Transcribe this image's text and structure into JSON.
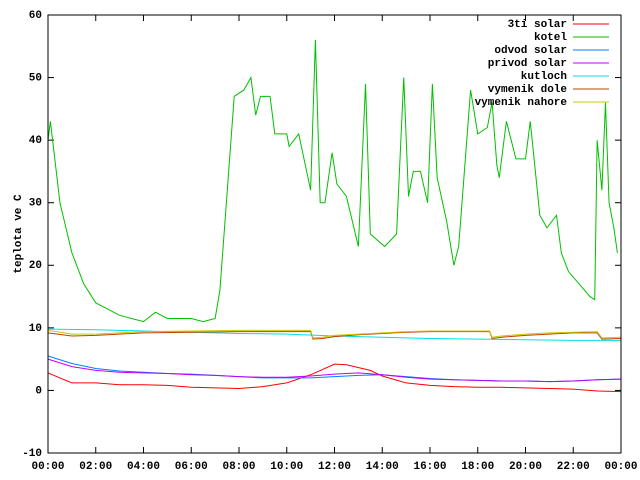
{
  "chart_data": {
    "type": "line",
    "ylabel": "teplota ve C",
    "xlim": [
      0,
      24
    ],
    "xticks": [
      {
        "value": 0,
        "label": "00:00"
      },
      {
        "value": 2,
        "label": "02:00"
      },
      {
        "value": 4,
        "label": "04:00"
      },
      {
        "value": 6,
        "label": "06:00"
      },
      {
        "value": 8,
        "label": "08:00"
      },
      {
        "value": 10,
        "label": "10:00"
      },
      {
        "value": 12,
        "label": "12:00"
      },
      {
        "value": 14,
        "label": "14:00"
      },
      {
        "value": 16,
        "label": "16:00"
      },
      {
        "value": 18,
        "label": "18:00"
      },
      {
        "value": 20,
        "label": "20:00"
      },
      {
        "value": 22,
        "label": "22:00"
      },
      {
        "value": 24,
        "label": "00:00"
      }
    ],
    "ylim": [
      -10,
      60
    ],
    "yticks": [
      -10,
      0,
      10,
      20,
      30,
      40,
      50,
      60
    ],
    "legend": "top-right",
    "series": [
      {
        "name": "3ti solar",
        "color": "#ff0000",
        "x": [
          0,
          1,
          2,
          3,
          4,
          5,
          6,
          7,
          8,
          9,
          10,
          11,
          12,
          12.5,
          13.5,
          14,
          15,
          16,
          17,
          18,
          19,
          20,
          21,
          22,
          23,
          24
        ],
        "values": [
          2.8,
          1.2,
          1.2,
          0.9,
          0.9,
          0.8,
          0.5,
          0.4,
          0.3,
          0.6,
          1.2,
          2.5,
          4.2,
          4.1,
          3.2,
          2.3,
          1.2,
          0.8,
          0.6,
          0.5,
          0.5,
          0.4,
          0.3,
          0.2,
          -0.1,
          -0.2
        ]
      },
      {
        "name": "kotel",
        "color": "#00c000",
        "x": [
          0,
          0.1,
          0.5,
          1,
          1.5,
          2,
          2.5,
          3,
          3.5,
          4,
          4.5,
          5,
          5.5,
          6,
          6.5,
          7,
          7.2,
          7.8,
          8.2,
          8.5,
          8.7,
          8.9,
          9.3,
          9.5,
          10,
          10.1,
          10.5,
          11,
          11.2,
          11.4,
          11.6,
          11.9,
          12.1,
          12.5,
          13,
          13.3,
          13.5,
          14.1,
          14.6,
          14.9,
          15.1,
          15.3,
          15.6,
          15.9,
          16.1,
          16.3,
          16.7,
          17,
          17.2,
          17.7,
          18,
          18.4,
          18.6,
          18.8,
          18.9,
          19.2,
          19.6,
          20,
          20.2,
          20.6,
          20.9,
          21.3,
          21.5,
          21.8,
          22.7,
          22.9,
          23,
          23.2,
          23.35,
          23.5,
          23.7,
          23.85
        ],
        "values": [
          40,
          43,
          30,
          22,
          17,
          14,
          13,
          12,
          11.5,
          11,
          12.5,
          11.5,
          11.5,
          11.5,
          11,
          11.5,
          16,
          47,
          48,
          50,
          44,
          47,
          47,
          41,
          41,
          39,
          41,
          32,
          56,
          30,
          30,
          38,
          33,
          31,
          23,
          49,
          25,
          23,
          25,
          50,
          31,
          35,
          35,
          30,
          49,
          34,
          27,
          20,
          23,
          48,
          41,
          42,
          46,
          36,
          34,
          43,
          37,
          37,
          43,
          28,
          26,
          28,
          22,
          19,
          15,
          14.5,
          40,
          32,
          46,
          30,
          26,
          22
        ]
      },
      {
        "name": "odvod solar",
        "color": "#0080ff",
        "x": [
          0,
          1,
          2,
          3,
          4,
          5,
          6,
          7,
          8,
          9,
          10,
          11,
          12,
          13,
          14,
          15,
          16,
          17,
          18,
          19,
          20,
          21,
          22,
          23,
          24
        ],
        "values": [
          5.5,
          4.3,
          3.5,
          3.1,
          2.9,
          2.7,
          2.6,
          2.4,
          2.2,
          2.0,
          2.0,
          2.0,
          2.2,
          2.4,
          2.5,
          2.2,
          1.9,
          1.7,
          1.6,
          1.5,
          1.5,
          1.4,
          1.5,
          1.7,
          1.8
        ]
      },
      {
        "name": "privod solar",
        "color": "#c000ff",
        "x": [
          0,
          1,
          2,
          3,
          4,
          5,
          6,
          7,
          8,
          9,
          10,
          11,
          12,
          13,
          14,
          15,
          16,
          17,
          18,
          19,
          20,
          21,
          22,
          23,
          24
        ],
        "values": [
          5.0,
          3.8,
          3.2,
          2.9,
          2.8,
          2.7,
          2.5,
          2.4,
          2.2,
          2.1,
          2.1,
          2.3,
          2.6,
          2.8,
          2.5,
          2.1,
          1.8,
          1.7,
          1.6,
          1.5,
          1.5,
          1.4,
          1.5,
          1.7,
          1.8
        ]
      },
      {
        "name": "kutloch",
        "color": "#00e0e0",
        "x": [
          0,
          2,
          4,
          6,
          8,
          10,
          12,
          14,
          16,
          18,
          20,
          22,
          24
        ],
        "values": [
          9.8,
          9.7,
          9.5,
          9.3,
          9.1,
          9.0,
          8.7,
          8.5,
          8.3,
          8.2,
          8.1,
          8.0,
          8.0
        ]
      },
      {
        "name": "vymenik dole",
        "color": "#c04000",
        "x": [
          0,
          1,
          2,
          3,
          4,
          6,
          8,
          10,
          11,
          11.1,
          11.5,
          12,
          13,
          14,
          15,
          16,
          18,
          18.5,
          18.6,
          19,
          20,
          21,
          22,
          23,
          23.2,
          24
        ],
        "values": [
          9.2,
          8.7,
          8.8,
          9.0,
          9.2,
          9.3,
          9.4,
          9.4,
          9.4,
          8.2,
          8.3,
          8.6,
          8.9,
          9.1,
          9.3,
          9.4,
          9.4,
          9.4,
          8.3,
          8.5,
          8.8,
          9.0,
          9.2,
          9.2,
          8.2,
          8.3
        ]
      },
      {
        "name": "vymenik nahore",
        "color": "#c8c800",
        "x": [
          0,
          1,
          2,
          4,
          6,
          8,
          10,
          11,
          11.1,
          11.5,
          12,
          13,
          14,
          15,
          16,
          18,
          18.5,
          18.6,
          19,
          20,
          21,
          22,
          23,
          23.2,
          24
        ],
        "values": [
          9.6,
          9.0,
          9.0,
          9.4,
          9.5,
          9.6,
          9.6,
          9.6,
          8.4,
          8.5,
          8.8,
          9.0,
          9.2,
          9.4,
          9.5,
          9.5,
          9.5,
          8.5,
          8.7,
          9.0,
          9.2,
          9.3,
          9.4,
          8.4,
          8.5
        ]
      }
    ]
  }
}
